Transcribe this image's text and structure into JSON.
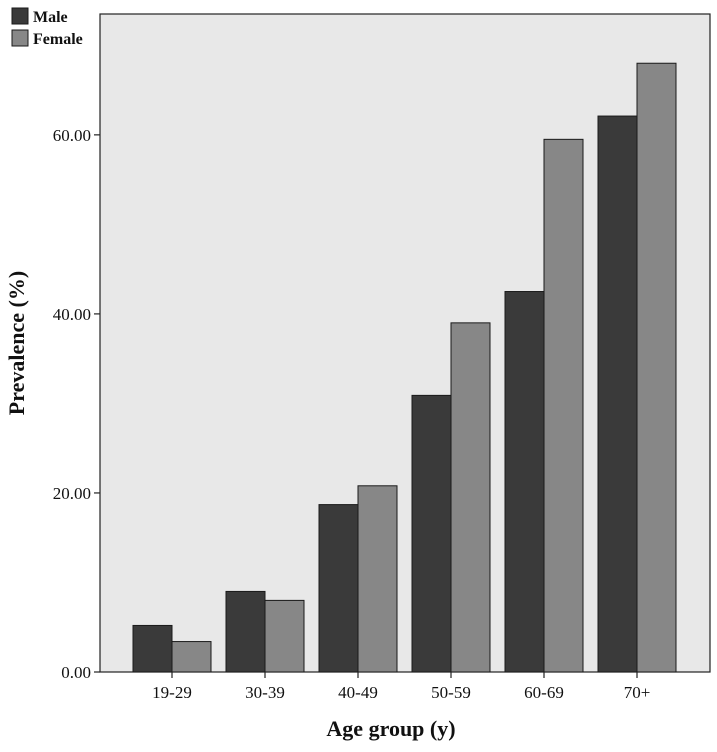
{
  "chart_data": {
    "type": "bar",
    "title": "",
    "xlabel": "Age group (y)",
    "ylabel": "Prevalence (%)",
    "categories": [
      "19-29",
      "30-39",
      "40-49",
      "50-59",
      "60-69",
      "70+"
    ],
    "series": [
      {
        "name": "Male",
        "color": "#3a3a3a",
        "values": [
          5.2,
          9.0,
          18.7,
          30.9,
          42.5,
          62.1
        ]
      },
      {
        "name": "Female",
        "color": "#878787",
        "values": [
          3.4,
          8.0,
          20.8,
          39.0,
          59.5,
          68.0
        ]
      }
    ],
    "ylim": [
      0,
      73.5
    ],
    "yticks": [
      0,
      20,
      40,
      60
    ],
    "ytick_labels": [
      "0.00",
      "20.00",
      "40.00",
      "60.00"
    ],
    "legend_position": "top-left",
    "grid": false,
    "background_color": "#e8e8e8"
  }
}
